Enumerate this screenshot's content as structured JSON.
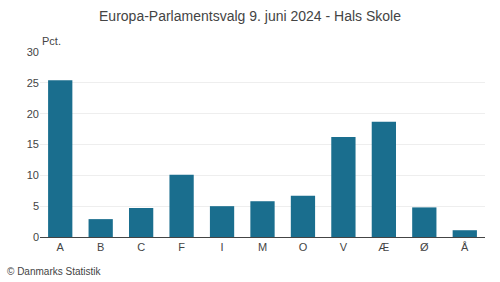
{
  "chart_data": {
    "type": "bar",
    "title": "Europa-Parlamentsvalg 9. juni 2024 - Hals Skole",
    "ylabel": "Pct.",
    "annotations": [
      "© Danmarks Statistik"
    ],
    "categories": [
      "A",
      "B",
      "C",
      "F",
      "I",
      "M",
      "O",
      "V",
      "Æ",
      "Ø",
      "Å"
    ],
    "values": [
      25.4,
      2.9,
      4.7,
      10.1,
      5.0,
      5.8,
      6.7,
      16.2,
      18.7,
      4.8,
      1.1
    ],
    "color": "#1a6e8e",
    "ylim": [
      0,
      30
    ],
    "yticks": [
      0,
      5,
      10,
      15,
      20,
      25,
      30
    ],
    "grid": true
  }
}
